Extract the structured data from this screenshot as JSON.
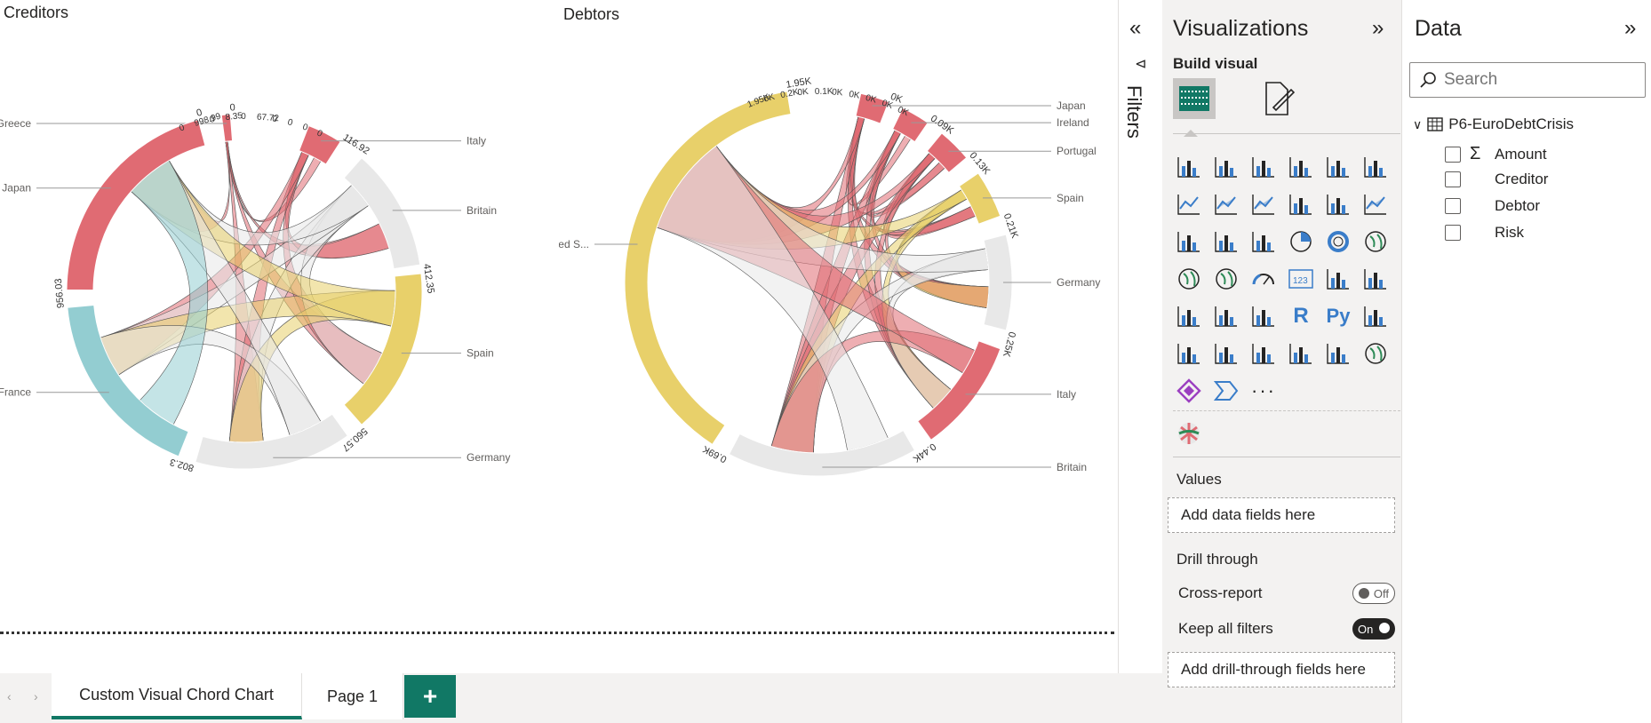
{
  "charts": [
    {
      "title": "Creditors",
      "segments": [
        {
          "name": "Greece",
          "color": "#e06b73",
          "label_total": "0"
        },
        {
          "name": "Italy",
          "color": "#e06b73",
          "label_total": "116.92"
        },
        {
          "name": "Britain",
          "color": "#e8e8e8",
          "label_total": "412.35"
        },
        {
          "name": "Spain",
          "color": "#e8d06a",
          "label_total": "560.57"
        },
        {
          "name": "Germany",
          "color": "#e8e8e8",
          "label_total": "802.3"
        },
        {
          "name": "France",
          "color": "#93cdd1",
          "label_total": "956.03"
        },
        {
          "name": "Japan",
          "color": "#e06b73",
          "label_total": "0"
        }
      ],
      "tick_labels": [
        "0",
        "998.99",
        "0",
        "8.35",
        "0",
        "67.72",
        "0",
        "0",
        "0",
        "0"
      ]
    },
    {
      "title": "Debtors",
      "segments": [
        {
          "name": "Japan",
          "color": "#e06b73",
          "label_total": "0K"
        },
        {
          "name": "Ireland",
          "color": "#e06b73",
          "label_total": "0.09K"
        },
        {
          "name": "Portugal",
          "color": "#e06b73",
          "label_total": "0.13K"
        },
        {
          "name": "Spain",
          "color": "#e8d06a",
          "label_total": "0.21K"
        },
        {
          "name": "Germany",
          "color": "#e8e8e8",
          "label_total": "0.25K"
        },
        {
          "name": "Italy",
          "color": "#e06b73",
          "label_total": "0.44K"
        },
        {
          "name": "Britain",
          "color": "#e8e8e8",
          "label_total": "0.69K"
        },
        {
          "name": "United S...",
          "color": "#e8d06a",
          "label_total": "1.95K"
        }
      ],
      "tick_labels": [
        "1.95K",
        "0K",
        "0.2K",
        "0K",
        "0.1K",
        "0K",
        "0K",
        "0K",
        "0K",
        "0K"
      ]
    }
  ],
  "tabs": [
    {
      "label": "Custom Visual Chord Chart",
      "active": true
    },
    {
      "label": "Page 1",
      "active": false
    }
  ],
  "tab_add_label": "+",
  "filters": {
    "label": "Filters"
  },
  "visualizations": {
    "title": "Visualizations",
    "build_visual": "Build visual",
    "values_section": "Values",
    "values_placeholder": "Add data fields here",
    "drill_section": "Drill through",
    "cross_report": "Cross-report",
    "cross_report_state": "Off",
    "keep_filters": "Keep all filters",
    "keep_filters_state": "On",
    "drill_placeholder": "Add drill-through fields here"
  },
  "data_pane": {
    "title": "Data",
    "search_placeholder": "Search",
    "table_name": "P6-EuroDebtCrisis",
    "fields": [
      {
        "name": "Amount",
        "sigma": true
      },
      {
        "name": "Creditor",
        "sigma": false
      },
      {
        "name": "Debtor",
        "sigma": false
      },
      {
        "name": "Risk",
        "sigma": false
      }
    ]
  },
  "colors": {
    "accent": "#117865",
    "red": "#e06b73",
    "yellow": "#e8d06a",
    "teal": "#93cdd1",
    "grey": "#e8e8e8"
  }
}
